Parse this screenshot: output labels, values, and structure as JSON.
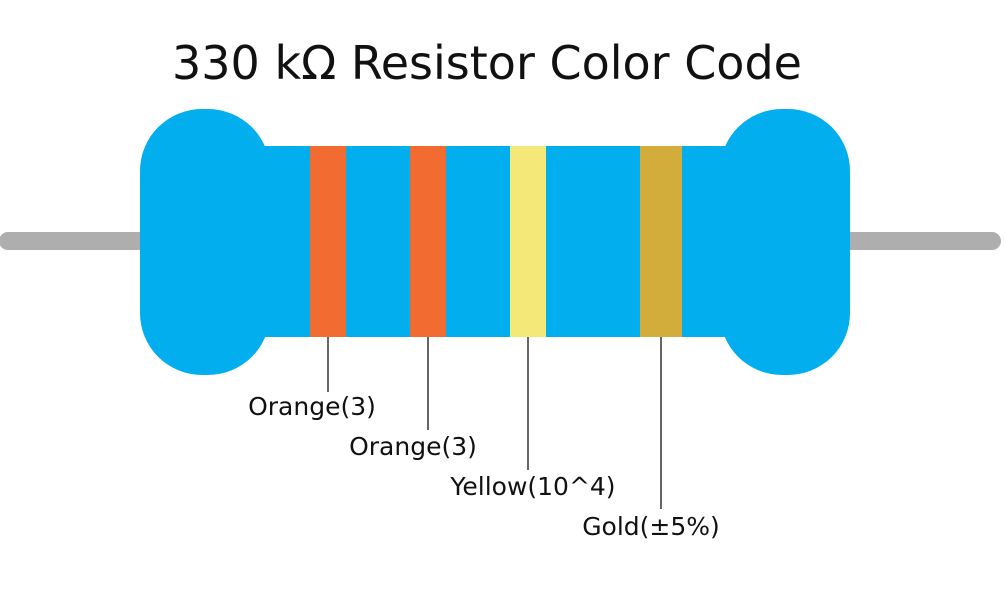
{
  "title": "330 kΩ Resistor Color Code",
  "colors": {
    "body": "#03aeef",
    "lead": "#aeaeae",
    "leader_line": "#333333",
    "text": "#111111"
  },
  "bands": [
    {
      "name": "Orange",
      "label": "Orange(3)",
      "color": "#f26c32"
    },
    {
      "name": "Orange",
      "label": "Orange(3)",
      "color": "#f26c32"
    },
    {
      "name": "Yellow",
      "label": "Yellow(10^4)",
      "color": "#f3e878"
    },
    {
      "name": "Gold",
      "label": "Gold(±5%)",
      "color": "#d3ad3b"
    }
  ]
}
